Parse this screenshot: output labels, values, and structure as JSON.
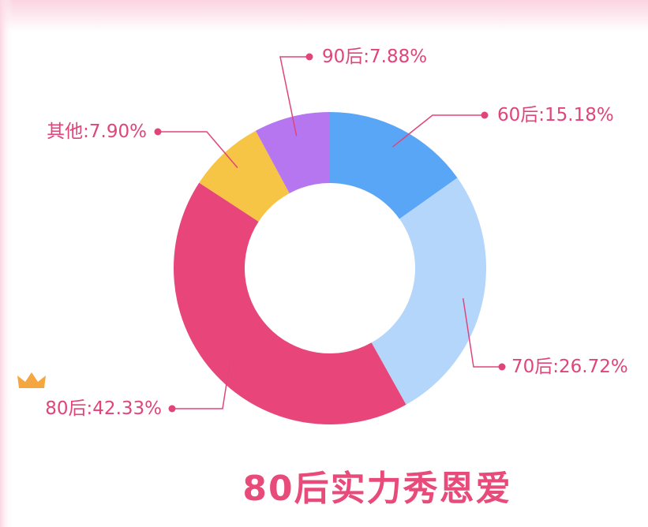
{
  "chart_data": {
    "type": "pie",
    "title": "80后实力秀恩爱",
    "categories": [
      "60后",
      "70后",
      "80后",
      "其他",
      "90后"
    ],
    "values": [
      15.18,
      26.72,
      42.33,
      7.9,
      7.88
    ],
    "value_labels": [
      ":15.18%",
      ":26.72%",
      ":42.33%",
      ":7.90%",
      ":7.88%"
    ],
    "colors": [
      "#5aa6f6",
      "#b4d6fb",
      "#e8467a",
      "#f7c545",
      "#b676f0"
    ]
  }
}
